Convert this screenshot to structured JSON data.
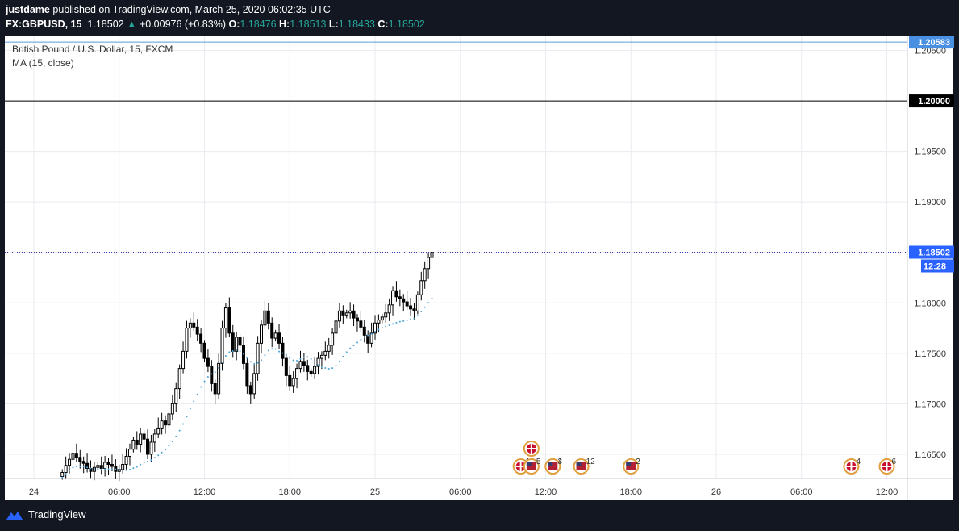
{
  "header": {
    "author": "justdame",
    "published": "published on TradingView.com, March 25, 2020 06:02:35 UTC",
    "symbol": "FX:GBPUSD, 15",
    "last": "1.18502",
    "arrow": "▲",
    "change": "+0.00976 (+0.83%)",
    "o_label": "O:",
    "o_val": "1.18476",
    "h_label": "H:",
    "h_val": "1.18513",
    "l_label": "L:",
    "l_val": "1.18433",
    "c_label": "C:",
    "c_val": "1.18502"
  },
  "legend": {
    "title": "British Pound / U.S. Dollar, 15, FXCM",
    "indicator": "MA (15, close)"
  },
  "footer": {
    "brand": "TradingView"
  },
  "colors": {
    "background": "#131722",
    "up": "#26a69a",
    "price_tag": "#2962ff",
    "ma": "#4ba3d9",
    "candle": "#000000"
  },
  "chart_data": {
    "type": "candlestick",
    "title": "British Pound / U.S. Dollar, 15, FXCM",
    "x_ticks": [
      "24",
      "06:00",
      "12:00",
      "18:00",
      "25",
      "06:00",
      "12:00",
      "18:00",
      "26",
      "06:00",
      "12:00"
    ],
    "y_ticks": [
      "1.16500",
      "1.17000",
      "1.17500",
      "1.18000",
      "1.18500",
      "1.19000",
      "1.19500",
      "1.20000",
      "1.20500"
    ],
    "y_range": [
      1.1626,
      1.2064
    ],
    "price_labels": [
      {
        "value": 1.20583,
        "text": "1.20583",
        "style": "blue",
        "line": true
      },
      {
        "value": 1.2,
        "text": "1.20000",
        "style": "black",
        "line": true
      },
      {
        "value": 1.18502,
        "text": "1.18502",
        "style": "current",
        "line": true,
        "countdown": "12:28"
      }
    ],
    "candles_close": [
      1.1632,
      1.1639,
      1.1645,
      1.1651,
      1.1647,
      1.1643,
      1.1641,
      1.1636,
      1.1633,
      1.1637,
      1.1639,
      1.1636,
      1.1642,
      1.164,
      1.1638,
      1.1633,
      1.1635,
      1.164,
      1.1648,
      1.1655,
      1.1664,
      1.166,
      1.167,
      1.1665,
      1.165,
      1.1662,
      1.167,
      1.1676,
      1.1683,
      1.1679,
      1.169,
      1.17,
      1.1715,
      1.1735,
      1.1752,
      1.1775,
      1.178,
      1.1776,
      1.1769,
      1.176,
      1.1745,
      1.1737,
      1.172,
      1.171,
      1.174,
      1.1775,
      1.1795,
      1.177,
      1.1752,
      1.1766,
      1.1758,
      1.174,
      1.1718,
      1.171,
      1.173,
      1.176,
      1.1778,
      1.1792,
      1.178,
      1.1765,
      1.177,
      1.176,
      1.1745,
      1.1728,
      1.1718,
      1.1725,
      1.1735,
      1.1742,
      1.1738,
      1.1732,
      1.173,
      1.1737,
      1.1745,
      1.1748,
      1.1752,
      1.1758,
      1.177,
      1.1782,
      1.1792,
      1.1788,
      1.179,
      1.1792,
      1.1785,
      1.1782,
      1.1776,
      1.1768,
      1.176,
      1.177,
      1.178,
      1.1783,
      1.1786,
      1.179,
      1.1798,
      1.1812,
      1.1806,
      1.1804,
      1.1801,
      1.1797,
      1.1794,
      1.1792,
      1.1808,
      1.1822,
      1.1834,
      1.1845,
      1.185
    ],
    "candles_high_extra": 0.0008,
    "candles_low_extra": 0.0008,
    "ma_period": 15,
    "events": [
      {
        "time": "2020-03-25 10:15",
        "flag": "uk",
        "label": "16"
      },
      {
        "time": "2020-03-25 11:00",
        "flag": "uk",
        "label": ""
      },
      {
        "time": "2020-03-25 11:00",
        "flag": "us",
        "label": "5"
      },
      {
        "time": "2020-03-25 12:30",
        "flag": "us",
        "label": "4"
      },
      {
        "time": "2020-03-25 12:30",
        "flag": "us",
        "label": "3"
      },
      {
        "time": "2020-03-25 14:30",
        "flag": "us",
        "label": "12"
      },
      {
        "time": "2020-03-25 18:00",
        "flag": "us",
        "label": "2"
      },
      {
        "time": "2020-03-26 09:30",
        "flag": "uk",
        "label": "4"
      },
      {
        "time": "2020-03-26 12:00",
        "flag": "uk",
        "label": "6"
      }
    ]
  }
}
